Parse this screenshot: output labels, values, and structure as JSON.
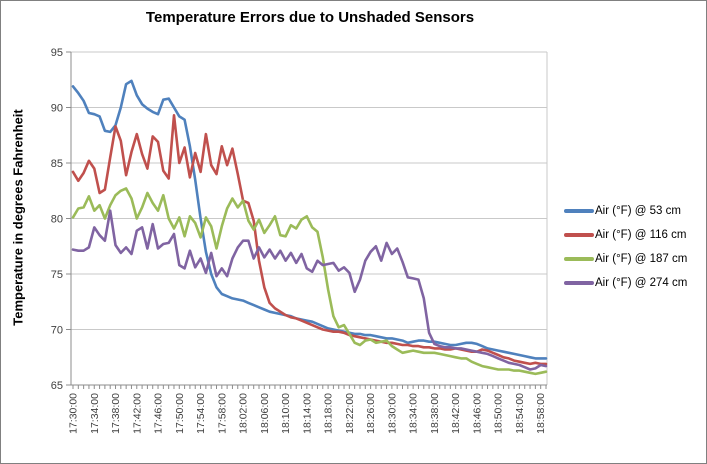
{
  "figure": {
    "background": "#FFFFFF",
    "border_color": "#808080"
  },
  "styles": {
    "gridline_color": "#C9C9C9",
    "axis_line_color": "#8C8C8C",
    "tick_label_color": "#3F3F3F",
    "title_color": "#000000"
  },
  "chart_data": {
    "type": "line",
    "title": "Temperature Errors due to Unshaded Sensors",
    "xlabel": "",
    "ylabel": "Temperature in degrees Fahrenheit",
    "ylim": [
      65,
      95
    ],
    "y_tick_step": 5,
    "y_tick_labels": [
      "65",
      "70",
      "75",
      "80",
      "85",
      "90",
      "95"
    ],
    "grid": true,
    "legend_position": "right",
    "x_start": "17:30:00",
    "x_step_minutes": 1,
    "x_label_every_minutes": 4,
    "x_tick_labels": [
      "17:30:00",
      "17:34:00",
      "17:38:00",
      "17:42:00",
      "17:46:00",
      "17:50:00",
      "17:54:00",
      "17:58:00",
      "18:02:00",
      "18:06:00",
      "18:10:00",
      "18:14:00",
      "18:18:00",
      "18:22:00",
      "18:26:00",
      "18:30:00",
      "18:34:00",
      "18:38:00",
      "18:42:00",
      "18:46:00",
      "18:50:00",
      "18:54:00",
      "18:58:00"
    ],
    "series": [
      {
        "name": "Air (°F) @ 53 cm",
        "color": "#4F81BD",
        "values": [
          91.9,
          91.3,
          90.6,
          89.5,
          89.4,
          89.2,
          87.9,
          87.8,
          88.4,
          90.0,
          92.1,
          92.4,
          91.1,
          90.3,
          89.9,
          89.6,
          89.4,
          90.7,
          90.8,
          90.0,
          89.2,
          88.9,
          86.5,
          83.5,
          80.0,
          77.0,
          75.0,
          73.8,
          73.2,
          73.0,
          72.8,
          72.7,
          72.6,
          72.4,
          72.2,
          72.0,
          71.8,
          71.6,
          71.5,
          71.4,
          71.3,
          71.2,
          71.0,
          70.9,
          70.8,
          70.7,
          70.5,
          70.3,
          70.1,
          70.0,
          69.9,
          69.8,
          69.7,
          69.6,
          69.6,
          69.5,
          69.5,
          69.4,
          69.3,
          69.2,
          69.2,
          69.1,
          69.0,
          68.8,
          68.9,
          69.0,
          69.0,
          68.9,
          68.9,
          68.8,
          68.7,
          68.6,
          68.6,
          68.7,
          68.8,
          68.8,
          68.7,
          68.5,
          68.3,
          68.2,
          68.1,
          68.0,
          67.9,
          67.8,
          67.7,
          67.6,
          67.5,
          67.4,
          67.4,
          67.4
        ]
      },
      {
        "name": "Air (°F) @ 116 cm",
        "color": "#C0504D",
        "values": [
          84.2,
          83.4,
          84.1,
          85.2,
          84.5,
          82.3,
          82.6,
          85.5,
          88.3,
          87.0,
          83.9,
          86.0,
          87.6,
          85.8,
          84.5,
          87.4,
          86.9,
          84.3,
          83.6,
          89.3,
          85.0,
          86.4,
          83.7,
          85.9,
          84.2,
          87.6,
          84.8,
          84.0,
          86.5,
          84.8,
          86.3,
          84.0,
          81.6,
          81.4,
          79.8,
          76.2,
          73.8,
          72.4,
          71.9,
          71.6,
          71.3,
          71.1,
          71.0,
          70.8,
          70.6,
          70.4,
          70.2,
          70.0,
          69.9,
          69.8,
          69.8,
          69.7,
          69.5,
          69.4,
          69.3,
          69.2,
          69.1,
          69.0,
          68.9,
          68.8,
          68.8,
          68.7,
          68.6,
          68.6,
          68.5,
          68.5,
          68.4,
          68.4,
          68.3,
          68.3,
          68.2,
          68.2,
          68.3,
          68.2,
          68.1,
          68.0,
          68.0,
          68.2,
          68.1,
          67.9,
          67.7,
          67.5,
          67.4,
          67.2,
          67.1,
          67.0,
          66.9,
          67.0,
          66.9,
          66.9
        ]
      },
      {
        "name": "Air (°F) @ 187 cm",
        "color": "#9BBB59",
        "values": [
          80.1,
          80.9,
          81.0,
          82.0,
          80.7,
          81.2,
          80.0,
          81.2,
          82.1,
          82.5,
          82.7,
          81.8,
          80.0,
          81.0,
          82.3,
          81.4,
          80.7,
          82.1,
          80.0,
          79.1,
          80.1,
          78.4,
          80.2,
          79.6,
          78.3,
          80.1,
          79.3,
          77.3,
          79.3,
          80.9,
          81.8,
          81.0,
          81.6,
          79.8,
          79.0,
          79.9,
          78.7,
          79.4,
          80.2,
          78.5,
          78.4,
          79.4,
          79.1,
          79.9,
          80.2,
          79.2,
          78.8,
          76.5,
          73.6,
          71.2,
          70.2,
          70.4,
          69.6,
          68.8,
          68.6,
          69.0,
          69.1,
          68.8,
          68.9,
          69.0,
          68.5,
          68.2,
          67.9,
          68.0,
          68.1,
          68.0,
          67.9,
          67.9,
          67.9,
          67.8,
          67.7,
          67.6,
          67.5,
          67.4,
          67.4,
          67.1,
          66.9,
          66.7,
          66.6,
          66.5,
          66.4,
          66.4,
          66.4,
          66.3,
          66.3,
          66.2,
          66.1,
          66.0,
          66.1,
          66.2
        ]
      },
      {
        "name": "Air (°F) @ 274 cm",
        "color": "#8064A2",
        "values": [
          77.2,
          77.1,
          77.1,
          77.4,
          79.2,
          78.5,
          78.0,
          80.7,
          77.6,
          76.9,
          77.4,
          76.8,
          78.9,
          79.2,
          77.3,
          79.5,
          77.3,
          77.7,
          77.8,
          78.6,
          75.8,
          75.5,
          77.1,
          75.6,
          76.4,
          75.1,
          76.9,
          74.8,
          75.5,
          74.8,
          76.4,
          77.4,
          78.0,
          78.0,
          76.4,
          77.4,
          76.5,
          77.2,
          76.4,
          77.1,
          76.2,
          76.9,
          76.0,
          76.8,
          75.5,
          75.2,
          76.2,
          75.8,
          75.9,
          76.0,
          75.3,
          75.6,
          75.1,
          73.4,
          74.5,
          76.2,
          77.0,
          77.5,
          76.2,
          77.8,
          76.8,
          77.3,
          76.1,
          74.7,
          74.6,
          74.5,
          72.8,
          69.7,
          68.7,
          68.5,
          68.4,
          68.4,
          68.3,
          68.3,
          68.2,
          68.1,
          68.0,
          67.9,
          67.8,
          67.6,
          67.4,
          67.2,
          67.0,
          66.9,
          66.8,
          66.6,
          66.4,
          66.5,
          66.8,
          66.7
        ]
      }
    ]
  }
}
